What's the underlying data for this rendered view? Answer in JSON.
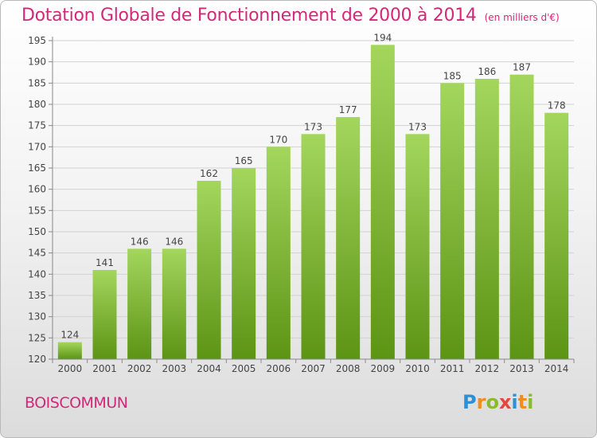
{
  "title": "Dotation Globale de Fonctionnement de 2000 à 2014",
  "subtitle": "(en milliers d'€)",
  "commune": "BOISCOMMUN",
  "logo": {
    "letters": [
      "P",
      "r",
      "o",
      "x",
      "i",
      "t",
      "i"
    ]
  },
  "colors": {
    "accent": "#d3287a",
    "bar_top": "#a4d65e",
    "bar_bottom": "#5c9414"
  },
  "chart_data": {
    "type": "bar",
    "categories": [
      "2000",
      "2001",
      "2002",
      "2003",
      "2004",
      "2005",
      "2006",
      "2007",
      "2008",
      "2009",
      "2010",
      "2011",
      "2012",
      "2013",
      "2014"
    ],
    "values": [
      124,
      141,
      146,
      146,
      162,
      165,
      170,
      173,
      177,
      194,
      173,
      185,
      186,
      187,
      178
    ],
    "ylim": [
      120,
      195
    ],
    "yticks": [
      120,
      125,
      130,
      135,
      140,
      145,
      150,
      155,
      160,
      165,
      170,
      175,
      180,
      185,
      190,
      195
    ],
    "grid": true,
    "data_labels": true
  }
}
